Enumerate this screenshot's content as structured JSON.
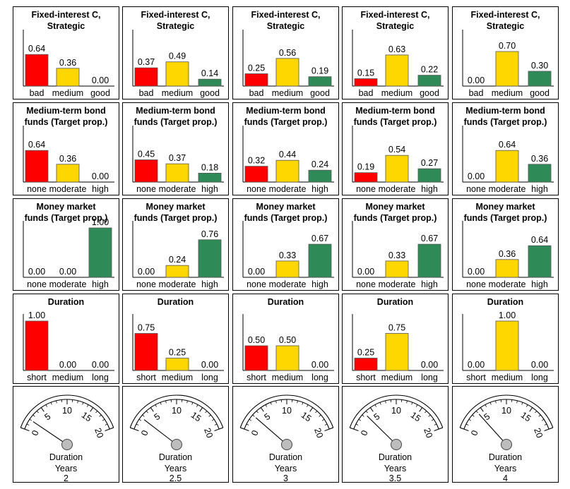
{
  "colors": {
    "bad": "#ff0000",
    "mid": "#ffd700",
    "good": "#2e8b57",
    "knob": "#bdbdbd"
  },
  "gauge_ticks": [
    "0",
    "5",
    "10",
    "15",
    "20"
  ],
  "chart_data": [
    {
      "type": "bar",
      "row": 0,
      "col": 0,
      "title": "Fixed-interest C,\nStrategic",
      "categories": [
        "bad",
        "medium",
        "good"
      ],
      "values": [
        0.64,
        0.36,
        0.0
      ],
      "labels": [
        "0.64",
        "0.36",
        "0.00"
      ],
      "ylim": [
        0,
        1
      ]
    },
    {
      "type": "bar",
      "row": 0,
      "col": 1,
      "title": "Fixed-interest C,\nStrategic",
      "categories": [
        "bad",
        "medium",
        "good"
      ],
      "values": [
        0.37,
        0.49,
        0.14
      ],
      "labels": [
        "0.37",
        "0.49",
        "0.14"
      ],
      "ylim": [
        0,
        1
      ]
    },
    {
      "type": "bar",
      "row": 0,
      "col": 2,
      "title": "Fixed-interest C,\nStrategic",
      "categories": [
        "bad",
        "medium",
        "good"
      ],
      "values": [
        0.25,
        0.56,
        0.19
      ],
      "labels": [
        "0.25",
        "0.56",
        "0.19"
      ],
      "ylim": [
        0,
        1
      ]
    },
    {
      "type": "bar",
      "row": 0,
      "col": 3,
      "title": "Fixed-interest C,\nStrategic",
      "categories": [
        "bad",
        "medium",
        "good"
      ],
      "values": [
        0.15,
        0.63,
        0.22
      ],
      "labels": [
        "0.15",
        "0.63",
        "0.22"
      ],
      "ylim": [
        0,
        1
      ]
    },
    {
      "type": "bar",
      "row": 0,
      "col": 4,
      "title": "Fixed-interest C,\nStrategic",
      "categories": [
        "bad",
        "medium",
        "good"
      ],
      "values": [
        0.0,
        0.7,
        0.3
      ],
      "labels": [
        "0.00",
        "0.70",
        "0.30"
      ],
      "ylim": [
        0,
        1
      ]
    },
    {
      "type": "bar",
      "row": 1,
      "col": 0,
      "title": "Medium-term bond\nfunds (Target prop.)",
      "categories": [
        "none",
        "moderate",
        "high"
      ],
      "values": [
        0.64,
        0.36,
        0.0
      ],
      "labels": [
        "0.64",
        "0.36",
        "0.00"
      ],
      "ylim": [
        0,
        1
      ]
    },
    {
      "type": "bar",
      "row": 1,
      "col": 1,
      "title": "Medium-term bond\nfunds (Target prop.)",
      "categories": [
        "none",
        "moderate",
        "high"
      ],
      "values": [
        0.45,
        0.37,
        0.18
      ],
      "labels": [
        "0.45",
        "0.37",
        "0.18"
      ],
      "ylim": [
        0,
        1
      ]
    },
    {
      "type": "bar",
      "row": 1,
      "col": 2,
      "title": "Medium-term bond\nfunds (Target prop.)",
      "categories": [
        "none",
        "moderate",
        "high"
      ],
      "values": [
        0.32,
        0.44,
        0.24
      ],
      "labels": [
        "0.32",
        "0.44",
        "0.24"
      ],
      "ylim": [
        0,
        1
      ]
    },
    {
      "type": "bar",
      "row": 1,
      "col": 3,
      "title": "Medium-term bond\nfunds (Target prop.)",
      "categories": [
        "none",
        "moderate",
        "high"
      ],
      "values": [
        0.19,
        0.54,
        0.27
      ],
      "labels": [
        "0.19",
        "0.54",
        "0.27"
      ],
      "ylim": [
        0,
        1
      ]
    },
    {
      "type": "bar",
      "row": 1,
      "col": 4,
      "title": "Medium-term bond\nfunds (Target prop.)",
      "categories": [
        "none",
        "moderate",
        "high"
      ],
      "values": [
        0.0,
        0.64,
        0.36
      ],
      "labels": [
        "0.00",
        "0.64",
        "0.36"
      ],
      "ylim": [
        0,
        1
      ]
    },
    {
      "type": "bar",
      "row": 2,
      "col": 0,
      "title": "Money market\nfunds (Target prop.)",
      "categories": [
        "none",
        "moderate",
        "high"
      ],
      "values": [
        0.0,
        0.0,
        1.0
      ],
      "labels": [
        "0.00",
        "0.00",
        "1.00"
      ],
      "ylim": [
        0,
        1
      ]
    },
    {
      "type": "bar",
      "row": 2,
      "col": 1,
      "title": "Money market\nfunds (Target prop.)",
      "categories": [
        "none",
        "moderate",
        "high"
      ],
      "values": [
        0.0,
        0.24,
        0.76
      ],
      "labels": [
        "0.00",
        "0.24",
        "0.76"
      ],
      "ylim": [
        0,
        1
      ]
    },
    {
      "type": "bar",
      "row": 2,
      "col": 2,
      "title": "Money market\nfunds (Target prop.)",
      "categories": [
        "none",
        "moderate",
        "high"
      ],
      "values": [
        0.0,
        0.33,
        0.67
      ],
      "labels": [
        "0.00",
        "0.33",
        "0.67"
      ],
      "ylim": [
        0,
        1
      ]
    },
    {
      "type": "bar",
      "row": 2,
      "col": 3,
      "title": "Money market\nfunds (Target prop.)",
      "categories": [
        "none",
        "moderate",
        "high"
      ],
      "values": [
        0.0,
        0.33,
        0.67
      ],
      "labels": [
        "0.00",
        "0.33",
        "0.67"
      ],
      "ylim": [
        0,
        1
      ]
    },
    {
      "type": "bar",
      "row": 2,
      "col": 4,
      "title": "Money market\nfunds (Target  prop.)",
      "categories": [
        "none",
        "moderate",
        "high"
      ],
      "values": [
        0.0,
        0.36,
        0.64
      ],
      "labels": [
        "0.00",
        "0.36",
        "0.64"
      ],
      "ylim": [
        0,
        1
      ]
    },
    {
      "type": "bar",
      "row": 3,
      "col": 0,
      "title": "Duration",
      "categories": [
        "short",
        "medium",
        "long"
      ],
      "values": [
        1.0,
        0.0,
        0.0
      ],
      "labels": [
        "1.00",
        "0.00",
        "0.00"
      ],
      "ylim": [
        0,
        1
      ]
    },
    {
      "type": "bar",
      "row": 3,
      "col": 1,
      "title": "Duration",
      "categories": [
        "short",
        "medium",
        "long"
      ],
      "values": [
        0.75,
        0.25,
        0.0
      ],
      "labels": [
        "0.75",
        "0.25",
        "0.00"
      ],
      "ylim": [
        0,
        1
      ]
    },
    {
      "type": "bar",
      "row": 3,
      "col": 2,
      "title": "Duration",
      "categories": [
        "short",
        "medium",
        "long"
      ],
      "values": [
        0.5,
        0.5,
        0.0
      ],
      "labels": [
        "0.50",
        "0.50",
        "0.00"
      ],
      "ylim": [
        0,
        1
      ]
    },
    {
      "type": "bar",
      "row": 3,
      "col": 3,
      "title": "Duration",
      "categories": [
        "short",
        "medium",
        "long"
      ],
      "values": [
        0.25,
        0.75,
        0.0
      ],
      "labels": [
        "0.25",
        "0.75",
        "0.00"
      ],
      "ylim": [
        0,
        1
      ]
    },
    {
      "type": "bar",
      "row": 3,
      "col": 4,
      "title": "Duration",
      "categories": [
        "short",
        "medium",
        "long"
      ],
      "values": [
        0.0,
        1.0,
        0.0
      ],
      "labels": [
        "0.00",
        "1.00",
        "0.00"
      ],
      "ylim": [
        0,
        1
      ]
    },
    {
      "type": "gauge",
      "row": 4,
      "col": 0,
      "label": "Duration",
      "unit": "Years",
      "value": 2,
      "value_text": "2",
      "range": [
        0,
        20
      ]
    },
    {
      "type": "gauge",
      "row": 4,
      "col": 1,
      "label": "Duration",
      "unit": "Years",
      "value": 2.5,
      "value_text": "2.5",
      "range": [
        0,
        20
      ]
    },
    {
      "type": "gauge",
      "row": 4,
      "col": 2,
      "label": "Duration",
      "unit": "Years",
      "value": 3,
      "value_text": "3",
      "range": [
        0,
        20
      ]
    },
    {
      "type": "gauge",
      "row": 4,
      "col": 3,
      "label": "Duration",
      "unit": "Years",
      "value": 3.5,
      "value_text": "3.5",
      "range": [
        0,
        20
      ]
    },
    {
      "type": "gauge",
      "row": 4,
      "col": 4,
      "label": "Duration",
      "unit": "Years",
      "value": 4,
      "value_text": "4",
      "range": [
        0,
        20
      ]
    }
  ]
}
